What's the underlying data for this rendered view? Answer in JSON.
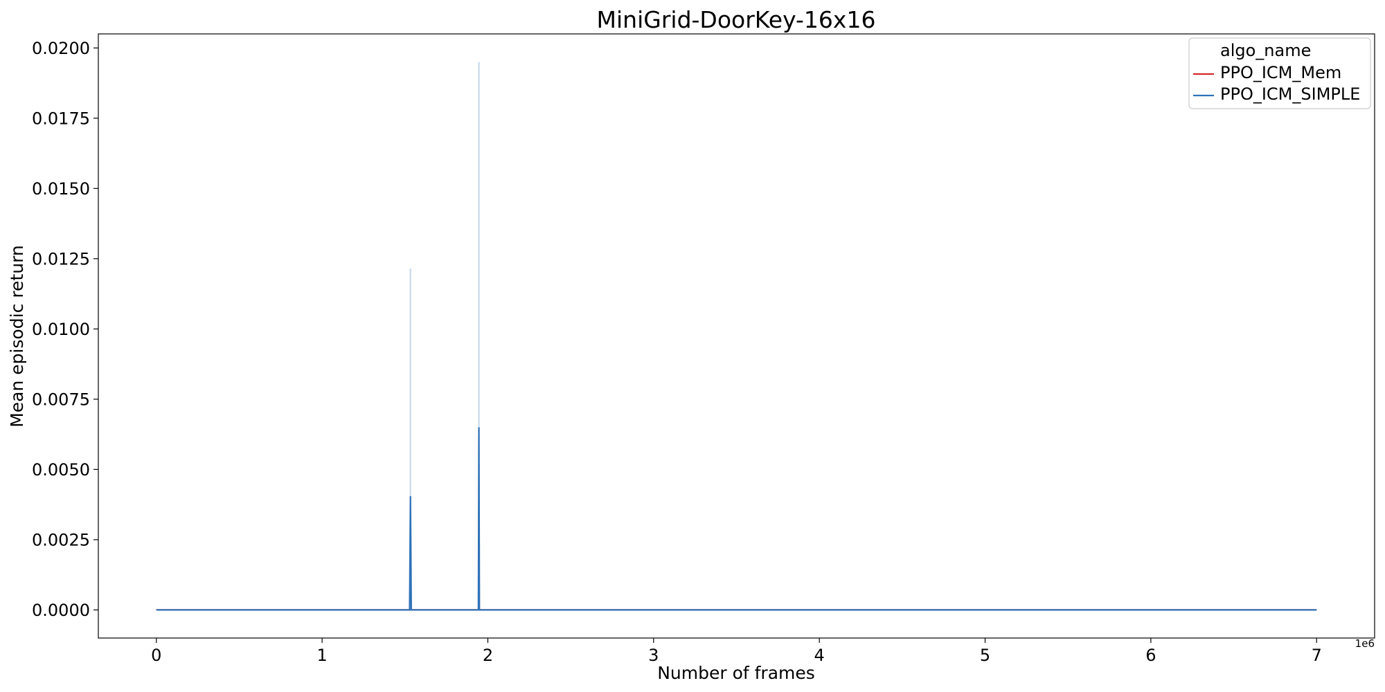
{
  "chart_data": {
    "type": "line",
    "title": "MiniGrid-DoorKey-16x16",
    "xlabel": "Number of frames",
    "ylabel": "Mean episodic return",
    "x_offset_label": "1e6",
    "xlim": [
      -0.35,
      7.35
    ],
    "ylim": [
      -0.001,
      0.0205
    ],
    "x_ticks": [
      0,
      1,
      2,
      3,
      4,
      5,
      6,
      7
    ],
    "x_tick_labels": [
      "0",
      "1",
      "2",
      "3",
      "4",
      "5",
      "6",
      "7"
    ],
    "y_ticks": [
      0,
      0.0025,
      0.005,
      0.0075,
      0.01,
      0.0125,
      0.015,
      0.0175,
      0.02
    ],
    "y_tick_labels": [
      "0.0000",
      "0.0025",
      "0.0050",
      "0.0075",
      "0.0100",
      "0.0125",
      "0.0150",
      "0.0175",
      "0.0200"
    ],
    "grid": false,
    "legend": {
      "title": "algo_name",
      "position": "top-right"
    },
    "series": [
      {
        "name": "PPO_ICM_Mem",
        "color": "#d62728",
        "x": [
          0,
          7
        ],
        "y": [
          0,
          0
        ]
      },
      {
        "name": "PPO_ICM_SIMPLE",
        "color": "#2f72b8",
        "x": [
          0,
          1.528,
          1.533,
          1.538,
          1.943,
          1.946,
          1.949,
          7
        ],
        "y": [
          0,
          0,
          0.00405,
          0,
          0,
          0.0065,
          0,
          0
        ],
        "band": [
          {
            "x": 1.533,
            "lower": 0,
            "upper": 0.01215
          },
          {
            "x": 1.946,
            "lower": 0,
            "upper": 0.0195
          }
        ]
      }
    ]
  }
}
